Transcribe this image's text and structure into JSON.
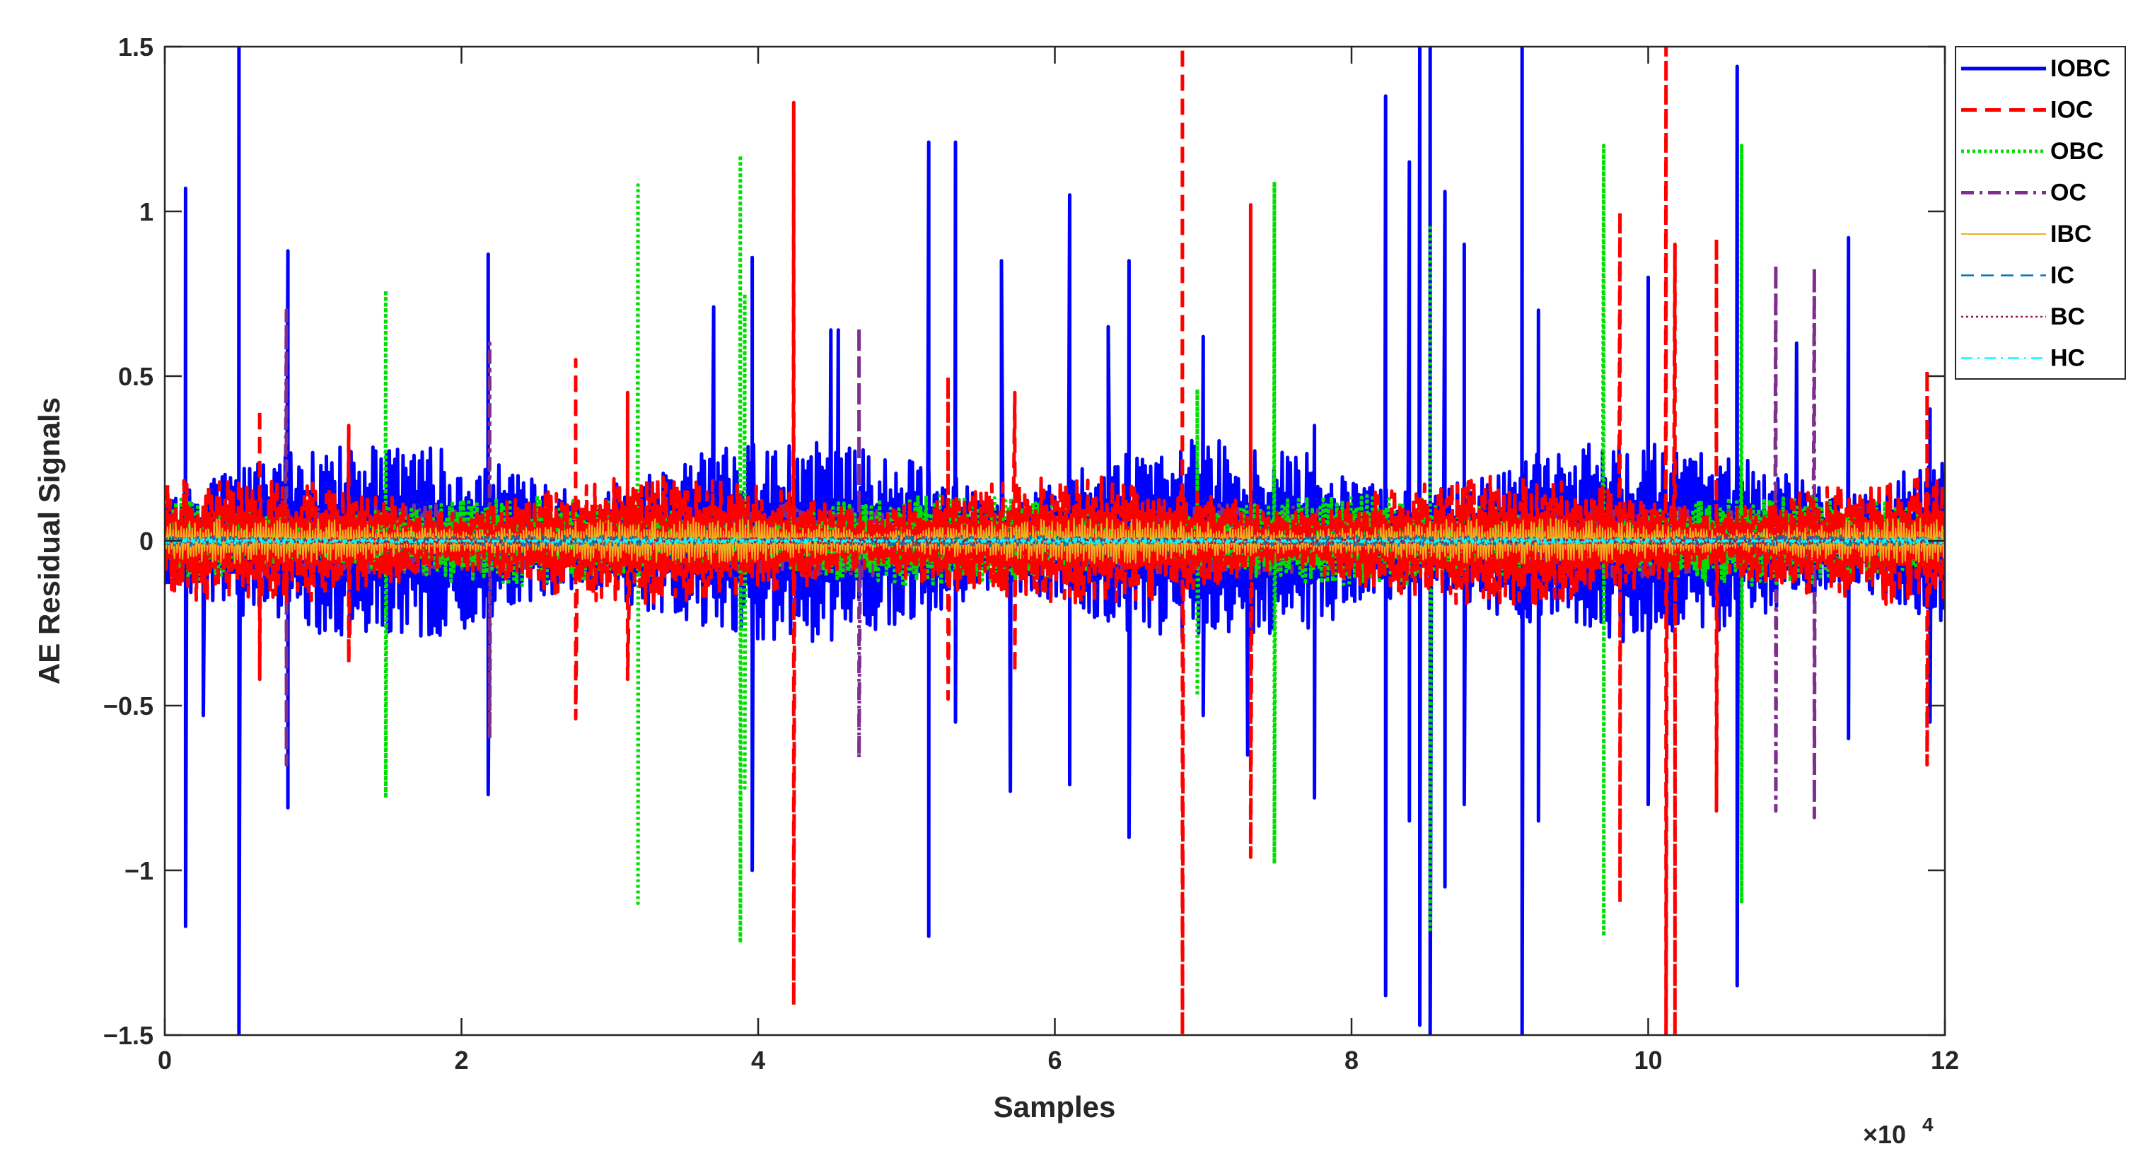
{
  "chart_data": {
    "type": "line",
    "title": "",
    "xlabel": "Samples",
    "ylabel": "AE Residual Signals",
    "xlim": [
      0,
      120000
    ],
    "ylim": [
      -1.5,
      1.5
    ],
    "x_ticks": [
      0,
      20000,
      40000,
      60000,
      80000,
      100000,
      120000
    ],
    "x_tick_labels": [
      "0",
      "2",
      "4",
      "6",
      "8",
      "10",
      "12"
    ],
    "x_exponent_label": "×10",
    "x_exponent_power": "4",
    "y_ticks": [
      -1.5,
      -1,
      -0.5,
      0,
      0.5,
      1,
      1.5
    ],
    "y_tick_labels": [
      "−1.5",
      "−1",
      "−0.5",
      "0",
      "0.5",
      "1",
      "1.5"
    ],
    "grid": false,
    "legend_position": "outside-top-right",
    "series": [
      {
        "name": "IOBC",
        "color": "#0000ff",
        "style": "solid",
        "base_amplitude": 0.22,
        "spikes": [
          [
            1400,
            1.07
          ],
          [
            1400,
            -1.17
          ],
          [
            2600,
            -0.53
          ],
          [
            5000,
            1.5
          ],
          [
            5000,
            -1.5
          ],
          [
            8300,
            0.88
          ],
          [
            8300,
            -0.81
          ],
          [
            21800,
            0.87
          ],
          [
            21800,
            -0.77
          ],
          [
            37000,
            0.71
          ],
          [
            39600,
            0.86
          ],
          [
            39600,
            -1.0
          ],
          [
            44900,
            0.64
          ],
          [
            45400,
            0.64
          ],
          [
            51500,
            1.21
          ],
          [
            51500,
            -1.2
          ],
          [
            53300,
            1.21
          ],
          [
            53300,
            -0.55
          ],
          [
            56400,
            0.85
          ],
          [
            57000,
            -0.76
          ],
          [
            61000,
            1.05
          ],
          [
            61000,
            -0.74
          ],
          [
            63600,
            0.65
          ],
          [
            65000,
            0.85
          ],
          [
            65000,
            -0.9
          ],
          [
            70000,
            0.62
          ],
          [
            70000,
            -0.53
          ],
          [
            73000,
            -0.65
          ],
          [
            77500,
            0.35
          ],
          [
            77500,
            -0.78
          ],
          [
            82300,
            1.35
          ],
          [
            82300,
            -1.38
          ],
          [
            83900,
            1.15
          ],
          [
            83900,
            -0.85
          ],
          [
            84600,
            1.5
          ],
          [
            84600,
            -1.47
          ],
          [
            85300,
            1.5
          ],
          [
            85300,
            -1.5
          ],
          [
            86300,
            1.06
          ],
          [
            86300,
            -1.05
          ],
          [
            87600,
            0.9
          ],
          [
            87600,
            -0.8
          ],
          [
            91500,
            1.5
          ],
          [
            91500,
            -1.5
          ],
          [
            92600,
            0.7
          ],
          [
            92600,
            -0.85
          ],
          [
            100000,
            0.8
          ],
          [
            100000,
            -0.8
          ],
          [
            106000,
            1.44
          ],
          [
            106000,
            -1.35
          ],
          [
            110000,
            0.6
          ],
          [
            113500,
            0.92
          ],
          [
            113500,
            -0.6
          ],
          [
            119000,
            0.4
          ],
          [
            119000,
            -0.55
          ]
        ]
      },
      {
        "name": "IOC",
        "color": "#ff0000",
        "style": "dashed",
        "base_amplitude": 0.14,
        "spikes": [
          [
            6400,
            0.4
          ],
          [
            6400,
            -0.42
          ],
          [
            12400,
            0.35
          ],
          [
            12400,
            -0.37
          ],
          [
            27700,
            0.55
          ],
          [
            27700,
            -0.54
          ],
          [
            31200,
            0.45
          ],
          [
            31200,
            -0.42
          ],
          [
            42400,
            1.33
          ],
          [
            42400,
            -1.41
          ],
          [
            52800,
            0.5
          ],
          [
            52800,
            -0.48
          ],
          [
            57300,
            0.45
          ],
          [
            57300,
            -0.4
          ],
          [
            68600,
            1.5
          ],
          [
            68600,
            -1.5
          ],
          [
            73200,
            1.02
          ],
          [
            73200,
            -0.96
          ],
          [
            98100,
            1.0
          ],
          [
            98100,
            -1.1
          ],
          [
            101200,
            1.5
          ],
          [
            101200,
            -1.5
          ],
          [
            101800,
            0.9
          ],
          [
            101800,
            -1.5
          ],
          [
            104600,
            0.92
          ],
          [
            104600,
            -0.82
          ],
          [
            118800,
            0.52
          ],
          [
            118800,
            -0.68
          ]
        ]
      },
      {
        "name": "OBC",
        "color": "#00e000",
        "style": "dotted",
        "base_amplitude": 0.1,
        "spikes": [
          [
            14900,
            0.76
          ],
          [
            14900,
            -0.78
          ],
          [
            31900,
            1.08
          ],
          [
            31900,
            -1.1
          ],
          [
            38800,
            1.17
          ],
          [
            38800,
            -1.22
          ],
          [
            39100,
            0.75
          ],
          [
            39100,
            -0.75
          ],
          [
            69600,
            0.46
          ],
          [
            69600,
            -0.47
          ],
          [
            74800,
            1.09
          ],
          [
            74800,
            -0.98
          ],
          [
            85300,
            0.95
          ],
          [
            85300,
            -1.18
          ],
          [
            97000,
            1.2
          ],
          [
            97000,
            -1.2
          ],
          [
            106300,
            1.2
          ],
          [
            106300,
            -1.1
          ]
        ]
      },
      {
        "name": "OC",
        "color": "#7e2f8e",
        "style": "dashdot",
        "base_amplitude": 0.08,
        "spikes": [
          [
            8200,
            0.7
          ],
          [
            8200,
            -0.68
          ],
          [
            21900,
            0.6
          ],
          [
            21900,
            -0.6
          ],
          [
            46800,
            0.65
          ],
          [
            46800,
            -0.66
          ],
          [
            108600,
            0.84
          ],
          [
            108600,
            -0.82
          ],
          [
            111200,
            0.83
          ],
          [
            111200,
            -0.84
          ]
        ]
      },
      {
        "name": "IBC",
        "color": "#edb120",
        "style": "solid-thin",
        "base_amplitude": 0.05,
        "spikes": []
      },
      {
        "name": "IC",
        "color": "#0072bd",
        "style": "dashed-thin",
        "base_amplitude": 0.012,
        "spikes": []
      },
      {
        "name": "BC",
        "color": "#a2142f",
        "style": "dotted-thin",
        "base_amplitude": 0.008,
        "spikes": []
      },
      {
        "name": "HC",
        "color": "#00ffff",
        "style": "dashdot-thin",
        "base_amplitude": 0.006,
        "spikes": []
      }
    ]
  }
}
